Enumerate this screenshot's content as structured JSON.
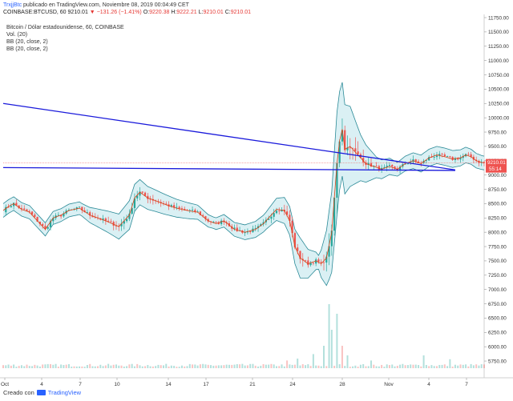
{
  "header": {
    "user": "TrxjjBtc",
    "published": "publicado en TradingView.com, Noviembre 08, 2019 00:04:49 CET",
    "symbol": "COINBASE:BTCUSD, 60",
    "last": "9210.01",
    "change": "−131.26 (−1.41%)",
    "open_label": "O:",
    "open": "9220.38",
    "high_label": "H:",
    "high": "9222.21",
    "low_label": "L:",
    "low": "9210.01",
    "close_label": "C:",
    "close": "9210.01"
  },
  "legend": {
    "title": "Bitcoin / Dólar estadounidense, 60, COINBASE",
    "vol": "Vol. (20)",
    "bb1": "BB (20, close, 2)",
    "bb2": "BB (20, close, 2)"
  },
  "price_tag": {
    "price": "9210.01",
    "timer": "55:14"
  },
  "footer": {
    "created": "Creado con",
    "brand": "TradingView"
  },
  "colors": {
    "up": "#26a69a",
    "down": "#ef5350",
    "band": "#2b8a97",
    "band_fill": "#d6eef3",
    "basis": "#d84315",
    "trendline": "#1a1adb",
    "last_line": "#ef5350"
  },
  "chart_data": {
    "type": "candlestick",
    "y_axis": {
      "min": 5625,
      "max": 11750,
      "ticks": [
        11750,
        11500,
        11250,
        11000,
        10750,
        10500,
        10250,
        10000,
        9750,
        9500,
        9250,
        9000,
        8750,
        8500,
        8250,
        8000,
        7750,
        7500,
        7250,
        7000,
        6750,
        6500,
        6250,
        6000,
        5750
      ]
    },
    "x_labels": [
      "Oct",
      "4",
      "7",
      "10",
      "14",
      "17",
      "21",
      "24",
      "28",
      "Nov",
      "4",
      "7"
    ],
    "close_path": [
      [
        0,
        8380
      ],
      [
        2,
        8450
      ],
      [
        4,
        8500
      ],
      [
        7,
        8400
      ],
      [
        10,
        8350
      ],
      [
        13,
        8200
      ],
      [
        16,
        8050
      ],
      [
        19,
        8250
      ],
      [
        22,
        8300
      ],
      [
        25,
        8380
      ],
      [
        29,
        8420
      ],
      [
        33,
        8300
      ],
      [
        36,
        8250
      ],
      [
        40,
        8180
      ],
      [
        44,
        8100
      ],
      [
        48,
        8300
      ],
      [
        50,
        8600
      ],
      [
        52,
        8700
      ],
      [
        55,
        8600
      ],
      [
        58,
        8550
      ],
      [
        62,
        8480
      ],
      [
        66,
        8420
      ],
      [
        70,
        8380
      ],
      [
        74,
        8350
      ],
      [
        78,
        8200
      ],
      [
        81,
        8150
      ],
      [
        84,
        8200
      ],
      [
        88,
        8050
      ],
      [
        92,
        8000
      ],
      [
        96,
        8050
      ],
      [
        99,
        8150
      ],
      [
        102,
        8300
      ],
      [
        104,
        8400
      ],
      [
        107,
        8380
      ],
      [
        109,
        8200
      ],
      [
        111,
        7750
      ],
      [
        113,
        7550
      ],
      [
        116,
        7450
      ],
      [
        119,
        7500
      ],
      [
        121,
        7450
      ],
      [
        123,
        7550
      ],
      [
        125,
        8000
      ],
      [
        127,
        9200
      ],
      [
        128,
        9600
      ],
      [
        129,
        9800
      ],
      [
        130,
        9450
      ],
      [
        132,
        9500
      ],
      [
        134,
        9400
      ],
      [
        136,
        9300
      ],
      [
        138,
        9200
      ],
      [
        141,
        9150
      ],
      [
        144,
        9100
      ],
      [
        147,
        9150
      ],
      [
        150,
        9100
      ],
      [
        153,
        9200
      ],
      [
        156,
        9250
      ],
      [
        159,
        9200
      ],
      [
        162,
        9300
      ],
      [
        165,
        9350
      ],
      [
        168,
        9320
      ],
      [
        171,
        9280
      ],
      [
        174,
        9300
      ],
      [
        176,
        9350
      ],
      [
        178,
        9320
      ],
      [
        180,
        9250
      ],
      [
        182,
        9220
      ],
      [
        183,
        9210
      ]
    ],
    "bollinger_width": [
      [
        0,
        120
      ],
      [
        30,
        110
      ],
      [
        48,
        250
      ],
      [
        55,
        200
      ],
      [
        80,
        100
      ],
      [
        100,
        150
      ],
      [
        109,
        250
      ],
      [
        113,
        350
      ],
      [
        120,
        120
      ],
      [
        124,
        600
      ],
      [
        127,
        900
      ],
      [
        132,
        700
      ],
      [
        136,
        400
      ],
      [
        142,
        180
      ],
      [
        150,
        120
      ],
      [
        160,
        150
      ],
      [
        170,
        150
      ],
      [
        183,
        120
      ]
    ],
    "volume": {
      "scale_max": 6250,
      "spikes": [
        [
          108,
          1.2
        ],
        [
          112,
          1.5
        ],
        [
          118,
          2.2
        ],
        [
          122,
          3.5
        ],
        [
          124,
          10.0
        ],
        [
          125,
          6.0
        ],
        [
          127,
          8.5
        ],
        [
          129,
          3.5
        ],
        [
          131,
          2.0
        ],
        [
          140,
          1.2
        ],
        [
          160,
          2.0
        ],
        [
          170,
          1.4
        ]
      ],
      "base": 0.45
    },
    "trendlines": [
      {
        "from": [
          0,
          10250
        ],
        "to": [
          172,
          9090
        ]
      },
      {
        "from": [
          0,
          9130
        ],
        "to": [
          172,
          9080
        ]
      }
    ]
  }
}
